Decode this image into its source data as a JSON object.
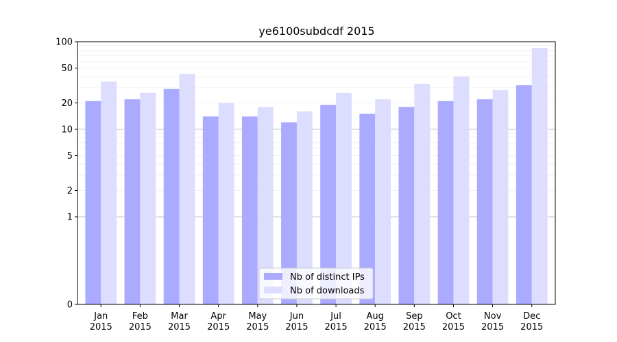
{
  "chart_data": {
    "type": "bar",
    "title": "ye6100subdcdf 2015",
    "xlabel": "",
    "ylabel": "",
    "y_scale": "symlog",
    "ylim": [
      0,
      100
    ],
    "y_ticks": [
      {
        "value": 0,
        "label": "0"
      },
      {
        "value": 1,
        "label": "1"
      },
      {
        "value": 2,
        "label": "2"
      },
      {
        "value": 5,
        "label": "5"
      },
      {
        "value": 10,
        "label": "10"
      },
      {
        "value": 20,
        "label": "20"
      },
      {
        "value": 50,
        "label": "50"
      },
      {
        "value": 100,
        "label": "100"
      }
    ],
    "grid": true,
    "legend_position": "bottom-center",
    "categories": [
      [
        "Jan",
        "2015"
      ],
      [
        "Feb",
        "2015"
      ],
      [
        "Mar",
        "2015"
      ],
      [
        "Apr",
        "2015"
      ],
      [
        "May",
        "2015"
      ],
      [
        "Jun",
        "2015"
      ],
      [
        "Jul",
        "2015"
      ],
      [
        "Aug",
        "2015"
      ],
      [
        "Sep",
        "2015"
      ],
      [
        "Oct",
        "2015"
      ],
      [
        "Nov",
        "2015"
      ],
      [
        "Dec",
        "2015"
      ]
    ],
    "series": [
      {
        "name": "Nb of distinct IPs",
        "color": "#aaaaff",
        "values": [
          21,
          22,
          29,
          14,
          14,
          12,
          19,
          15,
          18,
          21,
          22,
          32
        ]
      },
      {
        "name": "Nb of downloads",
        "color": "#ddddff",
        "values": [
          35,
          26,
          43,
          20,
          18,
          16,
          26,
          22,
          33,
          40,
          28,
          85
        ]
      }
    ]
  }
}
